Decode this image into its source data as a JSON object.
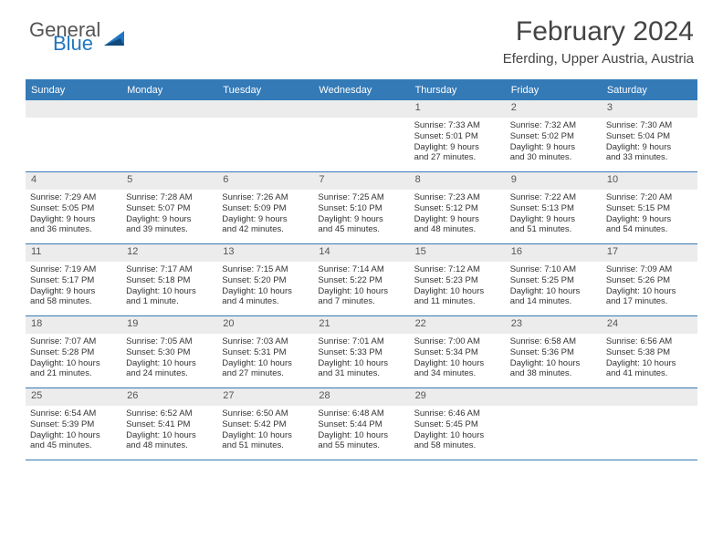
{
  "logo": {
    "general": "General",
    "blue": "Blue"
  },
  "title": "February 2024",
  "location": "Eferding, Upper Austria, Austria",
  "colors": {
    "header_bar": "#347ab7",
    "daynum_bg": "#ececec",
    "text": "#333333",
    "logo_blue": "#2176c1"
  },
  "daysOfWeek": [
    "Sunday",
    "Monday",
    "Tuesday",
    "Wednesday",
    "Thursday",
    "Friday",
    "Saturday"
  ],
  "weeks": [
    [
      null,
      null,
      null,
      null,
      {
        "n": "1",
        "sr": "Sunrise: 7:33 AM",
        "ss": "Sunset: 5:01 PM",
        "d1": "Daylight: 9 hours",
        "d2": "and 27 minutes."
      },
      {
        "n": "2",
        "sr": "Sunrise: 7:32 AM",
        "ss": "Sunset: 5:02 PM",
        "d1": "Daylight: 9 hours",
        "d2": "and 30 minutes."
      },
      {
        "n": "3",
        "sr": "Sunrise: 7:30 AM",
        "ss": "Sunset: 5:04 PM",
        "d1": "Daylight: 9 hours",
        "d2": "and 33 minutes."
      }
    ],
    [
      {
        "n": "4",
        "sr": "Sunrise: 7:29 AM",
        "ss": "Sunset: 5:05 PM",
        "d1": "Daylight: 9 hours",
        "d2": "and 36 minutes."
      },
      {
        "n": "5",
        "sr": "Sunrise: 7:28 AM",
        "ss": "Sunset: 5:07 PM",
        "d1": "Daylight: 9 hours",
        "d2": "and 39 minutes."
      },
      {
        "n": "6",
        "sr": "Sunrise: 7:26 AM",
        "ss": "Sunset: 5:09 PM",
        "d1": "Daylight: 9 hours",
        "d2": "and 42 minutes."
      },
      {
        "n": "7",
        "sr": "Sunrise: 7:25 AM",
        "ss": "Sunset: 5:10 PM",
        "d1": "Daylight: 9 hours",
        "d2": "and 45 minutes."
      },
      {
        "n": "8",
        "sr": "Sunrise: 7:23 AM",
        "ss": "Sunset: 5:12 PM",
        "d1": "Daylight: 9 hours",
        "d2": "and 48 minutes."
      },
      {
        "n": "9",
        "sr": "Sunrise: 7:22 AM",
        "ss": "Sunset: 5:13 PM",
        "d1": "Daylight: 9 hours",
        "d2": "and 51 minutes."
      },
      {
        "n": "10",
        "sr": "Sunrise: 7:20 AM",
        "ss": "Sunset: 5:15 PM",
        "d1": "Daylight: 9 hours",
        "d2": "and 54 minutes."
      }
    ],
    [
      {
        "n": "11",
        "sr": "Sunrise: 7:19 AM",
        "ss": "Sunset: 5:17 PM",
        "d1": "Daylight: 9 hours",
        "d2": "and 58 minutes."
      },
      {
        "n": "12",
        "sr": "Sunrise: 7:17 AM",
        "ss": "Sunset: 5:18 PM",
        "d1": "Daylight: 10 hours",
        "d2": "and 1 minute."
      },
      {
        "n": "13",
        "sr": "Sunrise: 7:15 AM",
        "ss": "Sunset: 5:20 PM",
        "d1": "Daylight: 10 hours",
        "d2": "and 4 minutes."
      },
      {
        "n": "14",
        "sr": "Sunrise: 7:14 AM",
        "ss": "Sunset: 5:22 PM",
        "d1": "Daylight: 10 hours",
        "d2": "and 7 minutes."
      },
      {
        "n": "15",
        "sr": "Sunrise: 7:12 AM",
        "ss": "Sunset: 5:23 PM",
        "d1": "Daylight: 10 hours",
        "d2": "and 11 minutes."
      },
      {
        "n": "16",
        "sr": "Sunrise: 7:10 AM",
        "ss": "Sunset: 5:25 PM",
        "d1": "Daylight: 10 hours",
        "d2": "and 14 minutes."
      },
      {
        "n": "17",
        "sr": "Sunrise: 7:09 AM",
        "ss": "Sunset: 5:26 PM",
        "d1": "Daylight: 10 hours",
        "d2": "and 17 minutes."
      }
    ],
    [
      {
        "n": "18",
        "sr": "Sunrise: 7:07 AM",
        "ss": "Sunset: 5:28 PM",
        "d1": "Daylight: 10 hours",
        "d2": "and 21 minutes."
      },
      {
        "n": "19",
        "sr": "Sunrise: 7:05 AM",
        "ss": "Sunset: 5:30 PM",
        "d1": "Daylight: 10 hours",
        "d2": "and 24 minutes."
      },
      {
        "n": "20",
        "sr": "Sunrise: 7:03 AM",
        "ss": "Sunset: 5:31 PM",
        "d1": "Daylight: 10 hours",
        "d2": "and 27 minutes."
      },
      {
        "n": "21",
        "sr": "Sunrise: 7:01 AM",
        "ss": "Sunset: 5:33 PM",
        "d1": "Daylight: 10 hours",
        "d2": "and 31 minutes."
      },
      {
        "n": "22",
        "sr": "Sunrise: 7:00 AM",
        "ss": "Sunset: 5:34 PM",
        "d1": "Daylight: 10 hours",
        "d2": "and 34 minutes."
      },
      {
        "n": "23",
        "sr": "Sunrise: 6:58 AM",
        "ss": "Sunset: 5:36 PM",
        "d1": "Daylight: 10 hours",
        "d2": "and 38 minutes."
      },
      {
        "n": "24",
        "sr": "Sunrise: 6:56 AM",
        "ss": "Sunset: 5:38 PM",
        "d1": "Daylight: 10 hours",
        "d2": "and 41 minutes."
      }
    ],
    [
      {
        "n": "25",
        "sr": "Sunrise: 6:54 AM",
        "ss": "Sunset: 5:39 PM",
        "d1": "Daylight: 10 hours",
        "d2": "and 45 minutes."
      },
      {
        "n": "26",
        "sr": "Sunrise: 6:52 AM",
        "ss": "Sunset: 5:41 PM",
        "d1": "Daylight: 10 hours",
        "d2": "and 48 minutes."
      },
      {
        "n": "27",
        "sr": "Sunrise: 6:50 AM",
        "ss": "Sunset: 5:42 PM",
        "d1": "Daylight: 10 hours",
        "d2": "and 51 minutes."
      },
      {
        "n": "28",
        "sr": "Sunrise: 6:48 AM",
        "ss": "Sunset: 5:44 PM",
        "d1": "Daylight: 10 hours",
        "d2": "and 55 minutes."
      },
      {
        "n": "29",
        "sr": "Sunrise: 6:46 AM",
        "ss": "Sunset: 5:45 PM",
        "d1": "Daylight: 10 hours",
        "d2": "and 58 minutes."
      },
      null,
      null
    ]
  ]
}
